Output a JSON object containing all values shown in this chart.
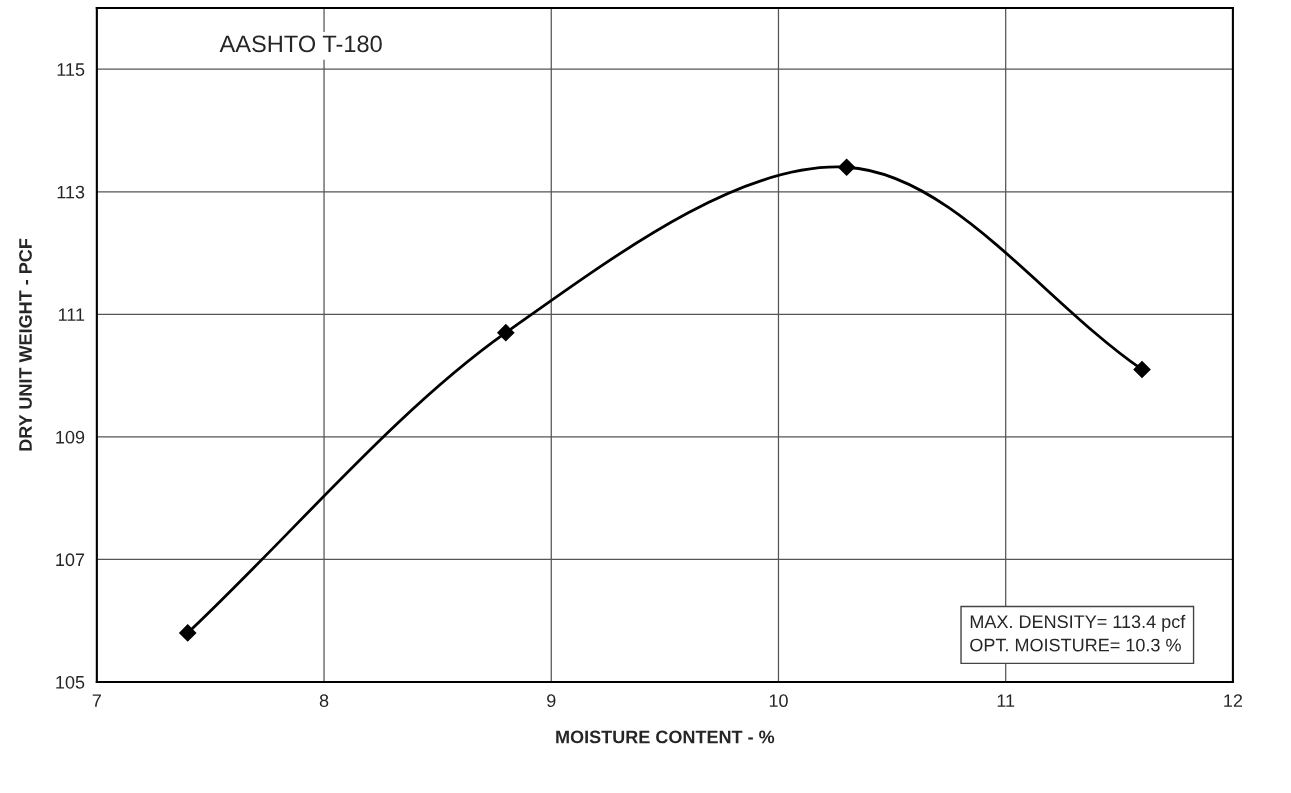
{
  "chart_data": {
    "type": "line",
    "title": "AASHTO T-180",
    "xlabel": "MOISTURE CONTENT - %",
    "ylabel": "DRY UNIT WEIGHT - PCF",
    "x": [
      7.4,
      8.8,
      10.3,
      11.6
    ],
    "series": [
      {
        "color": "#000000",
        "values": [
          105.8,
          110.7,
          113.4,
          110.1
        ]
      }
    ],
    "xlim": [
      7,
      12
    ],
    "xticks": [
      7,
      8,
      9,
      10,
      11,
      12
    ],
    "ylim": [
      105,
      116
    ],
    "yticks": [
      105,
      107,
      109,
      111,
      113,
      115
    ],
    "grid": true,
    "marker": "diamond",
    "line_style": "solid",
    "annotations": [
      "MAX. DENSITY= 113.4 pcf\nOPT. MOISTURE= 10.3 %"
    ]
  }
}
